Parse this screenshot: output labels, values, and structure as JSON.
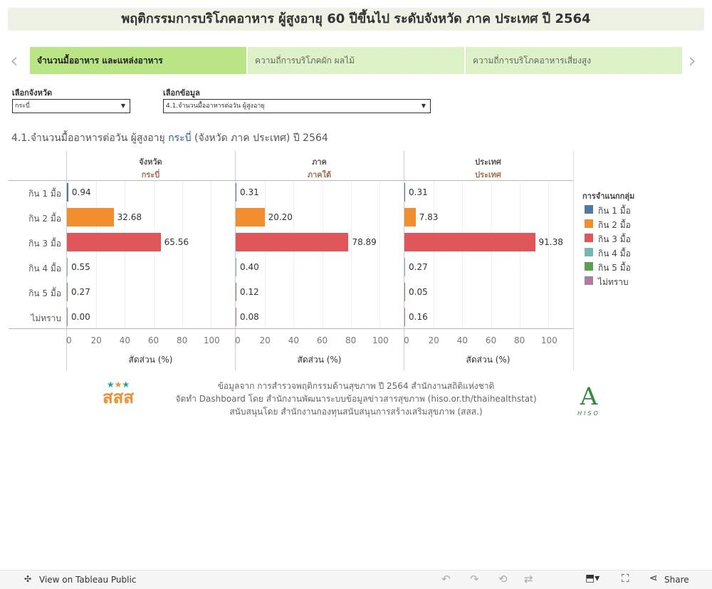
{
  "title": "พฤติกรรมการบริโภคอาหาร ผู้สูงอายุ 60 ปีขึ้นไป ระดับจังหวัด ภาค ประเทศ ปี 2564",
  "tabs": [
    {
      "label": "จำนวนมื้ออาหาร และแหล่งอาหาร",
      "active": true
    },
    {
      "label": "ความถี่การบริโภคผัก ผลไม้"
    },
    {
      "label": "ความถี่การบริโภคอาหารเสี่ยงสูง"
    }
  ],
  "filters": {
    "province_label": "เลือกจังหวัด",
    "province_value": "กระบี่",
    "data_label": "เลือกข้อมูล",
    "data_value": "4.1.จำนวนมื้ออาหารต่อวัน ผู้สูงอายุ"
  },
  "subtitle": {
    "pre": "4.1.จำนวนมื้ออาหารต่อวัน ผู้สูงอายุ ",
    "province": "กระบี่",
    "post": " (จังหวัด ภาค ประเทศ) ปี 2564"
  },
  "chart_data": {
    "type": "bar",
    "orientation": "horizontal",
    "categories": [
      "กิน 1 มื้อ",
      "กิน 2 มื้อ",
      "กิน 3 มื้อ",
      "กิน 4 มื้อ",
      "กิน 5 มื้อ",
      "ไม่ทราบ"
    ],
    "colors": [
      "#4e79a7",
      "#f28e2b",
      "#e15759",
      "#76b7b2",
      "#59a14f",
      "#b07aa1"
    ],
    "panels": [
      {
        "header": "จังหวัด",
        "sub": "กระบี่",
        "values": [
          0.94,
          32.68,
          65.56,
          0.55,
          0.27,
          0.0
        ]
      },
      {
        "header": "ภาค",
        "sub": "ภาคใต้",
        "values": [
          0.31,
          20.2,
          78.89,
          0.4,
          0.12,
          0.08
        ]
      },
      {
        "header": "ประเทศ",
        "sub": "ประเทศ",
        "values": [
          0.31,
          7.83,
          91.38,
          0.27,
          0.05,
          0.16
        ]
      }
    ],
    "xticks": [
      0,
      20,
      40,
      60,
      80,
      100
    ],
    "xlim": [
      0,
      117
    ],
    "xlabel": "สัดส่วน (%)",
    "grid": true,
    "legend": {
      "title": "การจำแนกกลุ่ม",
      "position": "right",
      "items": [
        "กิน 1 มื้อ",
        "กิน 2 มื้อ",
        "กิน 3 มื้อ",
        "กิน 4 มื้อ",
        "กิน 5 มื้อ",
        "ไม่ทราบ"
      ]
    }
  },
  "footer": [
    "ข้อมูลจาก การสำรวจพฤติกรรมด้านสุขภาพ ปี 2564 สำนักงานสถิติแห่งชาติ",
    "จัดทำ Dashboard โดย สำนักงานพัฒนาระบบข้อมูลข่าวสารสุขภาพ (hiso.or.th/thaihealthstat)",
    "สนับสนุนโดย สำนักงานกองทุนสนับสนุนการสร้างเสริมสุขภาพ (สสส.)"
  ],
  "logos": {
    "left": "สสส",
    "right": "HISO"
  },
  "toolbar": {
    "view": "View on Tableau Public",
    "share": "Share"
  }
}
